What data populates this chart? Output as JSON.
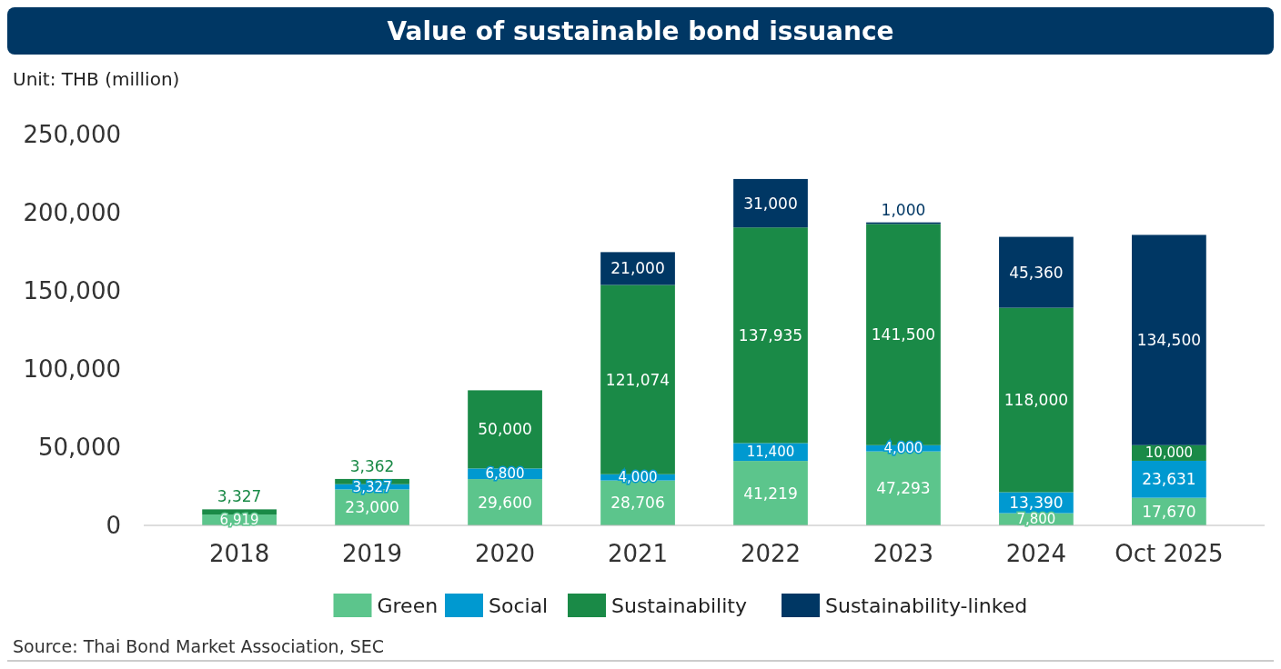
{
  "chart_data": {
    "type": "bar",
    "stacked": true,
    "title": "Value of sustainable bond issuance",
    "ylabel": "Unit: THB (million)",
    "categories": [
      "2018",
      "2019",
      "2020",
      "2021",
      "2022",
      "2023",
      "2024",
      "Oct 2025"
    ],
    "series": [
      {
        "name": "Green",
        "color": "#5cc58c",
        "values": [
          6919,
          23000,
          29600,
          28706,
          41219,
          47293,
          7800,
          17670
        ],
        "value_labels": [
          "6,919",
          "23,000",
          "29,600",
          "28,706",
          "41,219",
          "47,293",
          "7,800",
          "17,670"
        ]
      },
      {
        "name": "Social",
        "color": "#0099d0",
        "values": [
          null,
          3327,
          6800,
          4000,
          11400,
          4000,
          13390,
          23631
        ],
        "value_labels": [
          null,
          "3,327",
          "6,800",
          "4,000",
          "11,400",
          "4,000",
          "13,390",
          "23,631"
        ]
      },
      {
        "name": "Sustainability",
        "color": "#1a8a47",
        "values": [
          3327,
          3362,
          50000,
          121074,
          137935,
          141500,
          118000,
          10000
        ],
        "value_labels": [
          "3,327",
          "3,362",
          "50,000",
          "121,074",
          "137,935",
          "141,500",
          "118,000",
          "10,000"
        ]
      },
      {
        "name": "Sustainability-linked",
        "color": "#003764",
        "values": [
          null,
          null,
          null,
          21000,
          31000,
          1000,
          45360,
          134500
        ],
        "value_labels": [
          null,
          null,
          null,
          "21,000",
          "31,000",
          "1,000",
          "45,360",
          "134,500"
        ]
      }
    ],
    "ylim": [
      0,
      250000
    ],
    "yticks": [
      {
        "value": 0,
        "label": "0"
      },
      {
        "value": 50000,
        "label": "50,000"
      },
      {
        "value": 100000,
        "label": "100,000"
      },
      {
        "value": 150000,
        "label": "150,000"
      },
      {
        "value": 200000,
        "label": "200,000"
      },
      {
        "value": 250000,
        "label": "250,000"
      }
    ],
    "legend": "bottom",
    "grid": false,
    "annotations": [
      "Source: Thai Bond Market Association, SEC"
    ]
  }
}
